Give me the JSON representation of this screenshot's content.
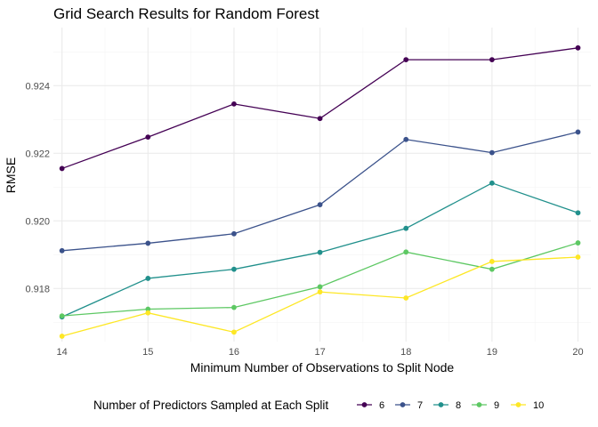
{
  "chart_data": {
    "type": "line",
    "title": "Grid Search Results for Random Forest",
    "xlabel": "Minimum Number of Observations to Split Node",
    "ylabel": "RMSE",
    "x": [
      14,
      15,
      16,
      17,
      18,
      19,
      20
    ],
    "xlim": [
      13.9,
      20.15
    ],
    "ylim": [
      0.91643,
      0.92572
    ],
    "y_ticks": [
      "0.918",
      "0.920",
      "0.922",
      "0.924"
    ],
    "y_tick_values": [
      0.918,
      0.92,
      0.922,
      0.924
    ],
    "x_ticks": [
      "14",
      "15",
      "16",
      "17",
      "18",
      "19",
      "20"
    ],
    "grid": true,
    "legend": {
      "title": "Number of Predictors Sampled at Each Split",
      "position": "bottom"
    },
    "series": [
      {
        "name": "6",
        "color": "#440154",
        "values": [
          0.92155,
          0.92248,
          0.92346,
          0.92303,
          0.92477,
          0.92477,
          0.92512
        ]
      },
      {
        "name": "7",
        "color": "#3B528B",
        "values": [
          0.91912,
          0.91934,
          0.91962,
          0.92048,
          0.92241,
          0.92202,
          0.92263
        ]
      },
      {
        "name": "8",
        "color": "#21908C",
        "values": [
          0.91716,
          0.9183,
          0.91857,
          0.91907,
          0.91978,
          0.92112,
          0.92024
        ]
      },
      {
        "name": "9",
        "color": "#5DC863",
        "values": [
          0.91719,
          0.91739,
          0.91744,
          0.91805,
          0.91908,
          0.91857,
          0.91935
        ]
      },
      {
        "name": "10",
        "color": "#FDE725",
        "values": [
          0.91659,
          0.91728,
          0.91671,
          0.9179,
          0.91772,
          0.9188,
          0.91893
        ]
      }
    ]
  }
}
